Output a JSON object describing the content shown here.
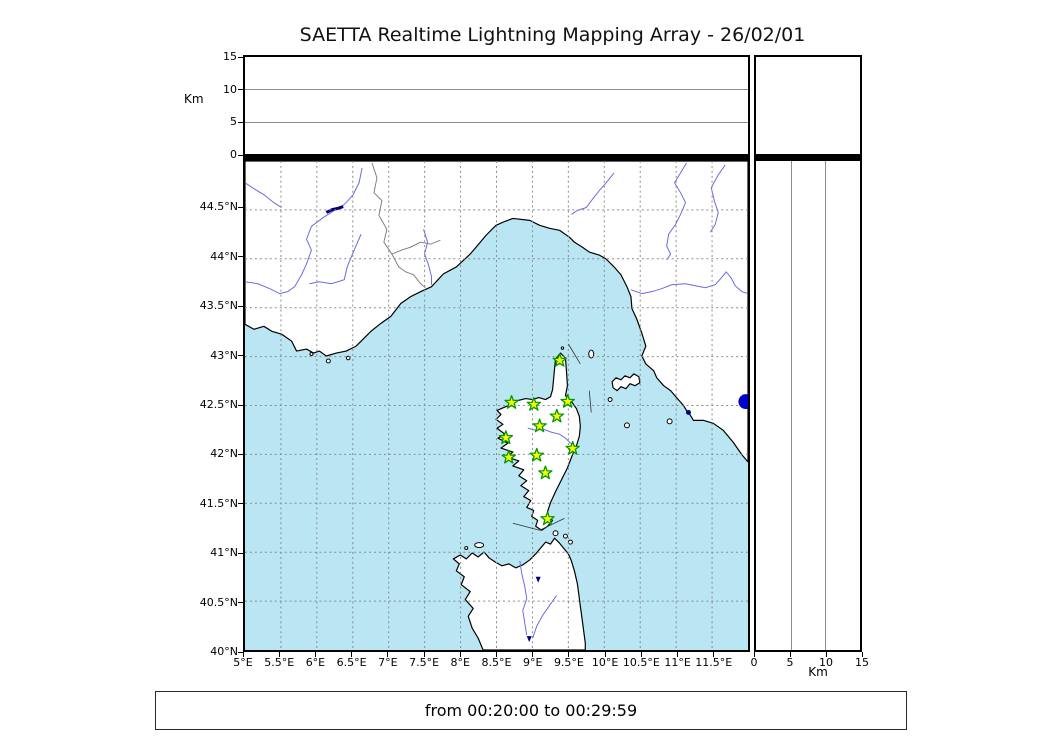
{
  "title": "SAETTA Realtime Lightning Mapping Array - 26/02/01",
  "caption": "from 00:20:00 to 00:29:59",
  "colors": {
    "sea": "#b9e6f2",
    "land": "#ffffff",
    "coast": "#000000",
    "river": "#6b6be0",
    "grid_dash": "#8a8a8a",
    "panel_grid": "#8c8c8c",
    "country_border": "#808080",
    "station_fill": "#ffff00",
    "station_edge": "#009900",
    "blue_dot": "#0000cc",
    "lake": "#000080"
  },
  "altitude_panel": {
    "unit_label": "Km",
    "range": [
      0,
      15
    ],
    "tick_labels": [
      "15",
      "10",
      "5",
      "0"
    ],
    "tick_values": [
      15,
      10,
      5,
      0
    ],
    "gridline_values": [
      5,
      10
    ]
  },
  "right_panel": {
    "unit_label": "Km",
    "range": [
      0,
      15
    ],
    "tick_labels": [
      "0",
      "5",
      "10",
      "15"
    ],
    "tick_values": [
      0,
      5,
      10,
      15
    ],
    "gridline_values": [
      5,
      10
    ]
  },
  "map": {
    "lon_range": [
      5,
      12
    ],
    "lat_range": [
      40,
      45
    ],
    "grid_step_deg": 0.5,
    "lon_tick_labels": [
      "5°E",
      "5.5°E",
      "6°E",
      "6.5°E",
      "7°E",
      "7.5°E",
      "8°E",
      "8.5°E",
      "9°E",
      "9.5°E",
      "10°E",
      "10.5°E",
      "11°E",
      "11.5°E"
    ],
    "lon_tick_values": [
      5,
      5.5,
      6,
      6.5,
      7,
      7.5,
      8,
      8.5,
      9,
      9.5,
      10,
      10.5,
      11,
      11.5
    ],
    "lat_tick_labels": [
      "44.5°N",
      "44°N",
      "43.5°N",
      "43°N",
      "42.5°N",
      "42°N",
      "41.5°N",
      "41°N",
      "40.5°N",
      "40°N"
    ],
    "lat_tick_values": [
      44.5,
      44,
      43.5,
      43,
      42.5,
      42,
      41.5,
      41,
      40.5,
      40
    ],
    "stations": [
      {
        "lon": 9.38,
        "lat": 42.96
      },
      {
        "lon": 8.71,
        "lat": 42.53
      },
      {
        "lon": 9.02,
        "lat": 42.51
      },
      {
        "lon": 9.49,
        "lat": 42.54
      },
      {
        "lon": 9.34,
        "lat": 42.39
      },
      {
        "lon": 9.1,
        "lat": 42.29
      },
      {
        "lon": 8.63,
        "lat": 42.17
      },
      {
        "lon": 9.56,
        "lat": 42.06
      },
      {
        "lon": 8.67,
        "lat": 41.97
      },
      {
        "lon": 9.06,
        "lat": 41.99
      },
      {
        "lon": 9.18,
        "lat": 41.81
      },
      {
        "lon": 9.21,
        "lat": 41.34
      }
    ],
    "blue_dot": {
      "lon": 11.97,
      "lat": 42.54
    }
  }
}
